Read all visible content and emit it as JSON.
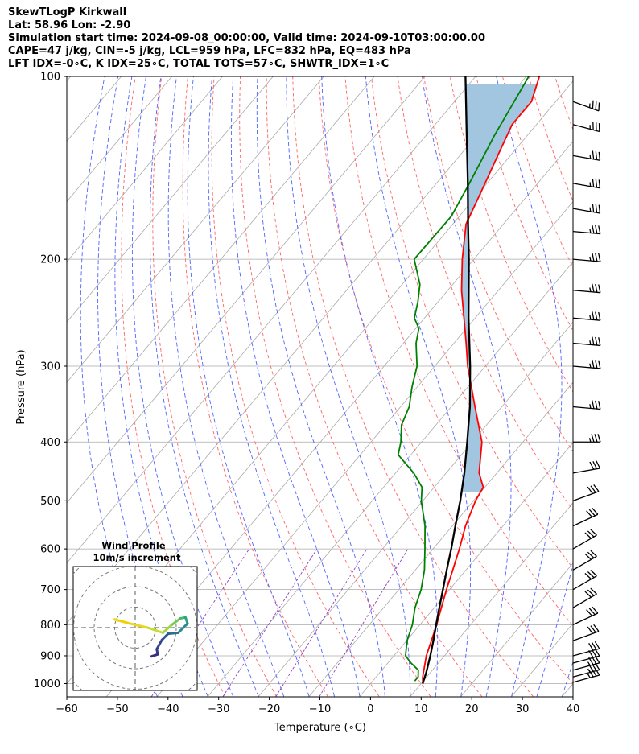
{
  "title_lines": [
    "SkewTLogP Kirkwall",
    "Lat: 58.96   Lon: -2.90",
    "Simulation start time: 2024-09-08_00:00:00, Valid time: 2024-09-10T03:00:00.00",
    "CAPE=47 j/kg, CIN=-5 j/kg, LCL=959 hPa, LFC=832 hPa, EQ=483 hPa",
    "LFT IDX=-0∘C, K IDX=25∘C, TOTAL TOTS=57∘C, SHWTR_IDX=1∘C"
  ],
  "chart_data": {
    "type": "line",
    "subtype": "skew-t log-p",
    "xlabel": "Temperature (∘C)",
    "ylabel": "Pressure (hPa)",
    "xlim": [
      -60,
      40
    ],
    "ylim": [
      1050,
      100
    ],
    "x_ticks": [
      -60,
      -50,
      -40,
      -30,
      -20,
      -10,
      0,
      10,
      20,
      30,
      40
    ],
    "x_tick_labels": [
      "−60",
      "−50",
      "−40",
      "−30",
      "−20",
      "−10",
      "0",
      "10",
      "20",
      "30",
      "40"
    ],
    "y_ticks": [
      1000,
      900,
      800,
      700,
      600,
      500,
      400,
      300,
      200,
      100
    ],
    "y_tick_labels": [
      "1000",
      "900",
      "800",
      "700",
      "600",
      "500",
      "400",
      "300",
      "200",
      "100"
    ],
    "grid": true,
    "colors": {
      "temperature": "#ff0000",
      "dewpoint": "#008000",
      "parcel": "#000000",
      "cape_fill": "#a3c6e0",
      "dry_adiabat": "#ff6464",
      "moist_adiabat": "#5064ff",
      "mixing_ratio": "#9040c0",
      "isotherm": "#aaaaaa",
      "isohume": "#4a62e8"
    },
    "series": [
      {
        "name": "Temperature",
        "points": [
          [
            1000,
            10.3
          ],
          [
            975,
            9.2
          ],
          [
            950,
            8.3
          ],
          [
            900,
            6.4
          ],
          [
            850,
            4.9
          ],
          [
            800,
            3.3
          ],
          [
            750,
            1.4
          ],
          [
            700,
            -0.6
          ],
          [
            650,
            -2.6
          ],
          [
            600,
            -4.8
          ],
          [
            550,
            -7.4
          ],
          [
            500,
            -9.6
          ],
          [
            475,
            -10.3
          ],
          [
            450,
            -13.5
          ],
          [
            400,
            -18.1
          ],
          [
            350,
            -25.3
          ],
          [
            300,
            -33.5
          ],
          [
            275,
            -37.6
          ],
          [
            250,
            -42.2
          ],
          [
            225,
            -47.3
          ],
          [
            200,
            -52.3
          ],
          [
            175,
            -57.4
          ],
          [
            150,
            -60.4
          ],
          [
            135,
            -62.5
          ],
          [
            120,
            -64.8
          ],
          [
            110,
            -64.8
          ],
          [
            100,
            -67.4
          ]
        ]
      },
      {
        "name": "Dewpoint",
        "points": [
          [
            990,
            8.3
          ],
          [
            975,
            8.3
          ],
          [
            950,
            7.2
          ],
          [
            925,
            4.6
          ],
          [
            900,
            2.3
          ],
          [
            850,
            0.1
          ],
          [
            800,
            -1.5
          ],
          [
            750,
            -3.8
          ],
          [
            700,
            -5.6
          ],
          [
            650,
            -8.2
          ],
          [
            600,
            -11.6
          ],
          [
            550,
            -15.4
          ],
          [
            500,
            -20.3
          ],
          [
            475,
            -22.4
          ],
          [
            450,
            -26.4
          ],
          [
            420,
            -32.5
          ],
          [
            400,
            -34.1
          ],
          [
            375,
            -36.8
          ],
          [
            350,
            -38.3
          ],
          [
            325,
            -41.0
          ],
          [
            300,
            -43.5
          ],
          [
            275,
            -47.5
          ],
          [
            260,
            -49.4
          ],
          [
            250,
            -52.0
          ],
          [
            235,
            -54.0
          ],
          [
            220,
            -56.5
          ],
          [
            200,
            -61.8
          ],
          [
            170,
            -61.6
          ],
          [
            150,
            -63.5
          ],
          [
            125,
            -66.5
          ],
          [
            100,
            -69.5
          ]
        ]
      },
      {
        "name": "Parcel",
        "points": [
          [
            1000,
            10.3
          ],
          [
            960,
            9.2
          ],
          [
            900,
            7.2
          ],
          [
            850,
            5.3
          ],
          [
            800,
            3.2
          ],
          [
            750,
            1.0
          ],
          [
            700,
            -1.3
          ],
          [
            650,
            -3.8
          ],
          [
            600,
            -6.4
          ],
          [
            550,
            -9.4
          ],
          [
            500,
            -12.6
          ],
          [
            450,
            -16.4
          ],
          [
            400,
            -21.0
          ],
          [
            350,
            -26.3
          ],
          [
            300,
            -33.0
          ],
          [
            250,
            -41.3
          ],
          [
            200,
            -51.0
          ],
          [
            175,
            -57.0
          ],
          [
            150,
            -63.8
          ],
          [
            125,
            -72.0
          ],
          [
            100,
            -82.0
          ]
        ]
      }
    ],
    "wind_barbs": [
      {
        "p": 995,
        "dir": 255,
        "spd": 35
      },
      {
        "p": 975,
        "dir": 255,
        "spd": 35
      },
      {
        "p": 950,
        "dir": 255,
        "spd": 35
      },
      {
        "p": 925,
        "dir": 255,
        "spd": 30
      },
      {
        "p": 900,
        "dir": 255,
        "spd": 30
      },
      {
        "p": 850,
        "dir": 250,
        "spd": 30
      },
      {
        "p": 800,
        "dir": 245,
        "spd": 30
      },
      {
        "p": 750,
        "dir": 240,
        "spd": 30
      },
      {
        "p": 700,
        "dir": 240,
        "spd": 30
      },
      {
        "p": 650,
        "dir": 240,
        "spd": 30
      },
      {
        "p": 600,
        "dir": 240,
        "spd": 30
      },
      {
        "p": 550,
        "dir": 245,
        "spd": 30
      },
      {
        "p": 500,
        "dir": 250,
        "spd": 30
      },
      {
        "p": 450,
        "dir": 260,
        "spd": 30
      },
      {
        "p": 400,
        "dir": 270,
        "spd": 35
      },
      {
        "p": 350,
        "dir": 275,
        "spd": 35
      },
      {
        "p": 300,
        "dir": 275,
        "spd": 35
      },
      {
        "p": 275,
        "dir": 275,
        "spd": 35
      },
      {
        "p": 250,
        "dir": 275,
        "spd": 35
      },
      {
        "p": 225,
        "dir": 275,
        "spd": 35
      },
      {
        "p": 200,
        "dir": 275,
        "spd": 35
      },
      {
        "p": 180,
        "dir": 275,
        "spd": 35
      },
      {
        "p": 165,
        "dir": 280,
        "spd": 35
      },
      {
        "p": 150,
        "dir": 280,
        "spd": 35
      },
      {
        "p": 135,
        "dir": 280,
        "spd": 35
      },
      {
        "p": 120,
        "dir": 285,
        "spd": 35
      },
      {
        "p": 110,
        "dir": 290,
        "spd": 35
      }
    ],
    "inset": {
      "title": "Wind Profile",
      "subtitle": "10m/s increment",
      "hodograph": [
        [
          -2.0,
          0.8
        ],
        [
          -0.5,
          0.4
        ],
        [
          1.2,
          0.0
        ],
        [
          2.7,
          -0.5
        ],
        [
          3.6,
          0.3
        ],
        [
          4.4,
          0.9
        ],
        [
          4.9,
          1.0
        ],
        [
          5.1,
          0.4
        ],
        [
          4.2,
          -0.5
        ],
        [
          3.2,
          -0.6
        ],
        [
          2.6,
          -1.2
        ],
        [
          2.1,
          -2.1
        ],
        [
          2.2,
          -2.6
        ],
        [
          1.6,
          -2.8
        ]
      ]
    }
  }
}
